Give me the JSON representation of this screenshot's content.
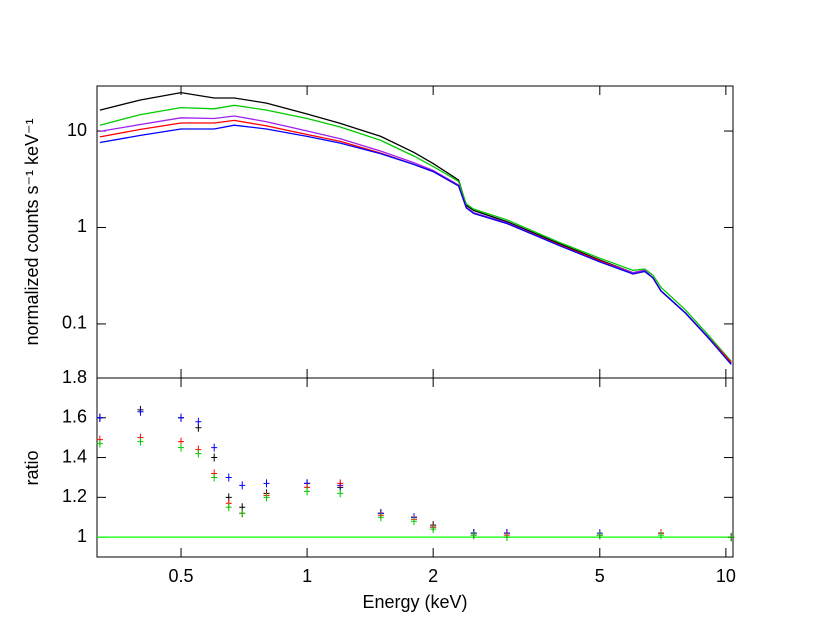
{
  "chart_data": [
    {
      "type": "line",
      "x_scale": "log",
      "y_scale": "log",
      "ylabel": "normalized counts s⁻¹ keV⁻¹",
      "x": [
        0.32,
        0.4,
        0.5,
        0.6,
        0.67,
        0.8,
        1,
        1.2,
        1.5,
        1.8,
        2,
        2.3,
        2.4,
        2.5,
        3,
        4,
        5,
        6,
        6.4,
        6.7,
        7,
        8,
        9,
        10.3
      ],
      "xlim": [
        0.315,
        10.4
      ],
      "ylim": [
        0.0275,
        29.3
      ],
      "yticks": [
        0.1,
        1,
        10
      ],
      "series": [
        {
          "name": "black",
          "color": "#000000",
          "values": [
            16.5,
            21,
            25,
            22,
            22,
            19.5,
            15,
            12,
            8.8,
            6,
            4.6,
            3.1,
            1.7,
            1.5,
            1.15,
            0.68,
            0.46,
            0.34,
            0.36,
            0.3,
            0.22,
            0.13,
            0.075,
            0.039
          ]
        },
        {
          "name": "green",
          "color": "#00cc00",
          "values": [
            11.5,
            14.8,
            17.5,
            17,
            18.5,
            16.5,
            13.5,
            11,
            8,
            5.5,
            4.3,
            3,
            1.75,
            1.55,
            1.2,
            0.7,
            0.48,
            0.36,
            0.37,
            0.32,
            0.24,
            0.14,
            0.08,
            0.041
          ]
        },
        {
          "name": "purple",
          "color": "#a020f0",
          "values": [
            9.9,
            11.7,
            13.7,
            13.5,
            14.3,
            12.5,
            10,
            8.3,
            6.2,
            4.7,
            3.9,
            2.75,
            1.62,
            1.42,
            1.12,
            0.66,
            0.45,
            0.34,
            0.36,
            0.3,
            0.22,
            0.13,
            0.076,
            0.04
          ]
        },
        {
          "name": "red",
          "color": "#ff0000",
          "values": [
            8.7,
            10.4,
            12.1,
            12.1,
            12.9,
            11.3,
            9.2,
            7.8,
            5.9,
            4.5,
            3.8,
            2.7,
            1.6,
            1.4,
            1.1,
            0.66,
            0.45,
            0.33,
            0.35,
            0.3,
            0.22,
            0.13,
            0.075,
            0.04
          ]
        },
        {
          "name": "blue",
          "color": "#0000ff",
          "values": [
            7.6,
            9,
            10.5,
            10.5,
            11.5,
            10.5,
            8.8,
            7.5,
            5.8,
            4.5,
            3.8,
            2.7,
            1.6,
            1.4,
            1.1,
            0.65,
            0.44,
            0.33,
            0.35,
            0.3,
            0.22,
            0.13,
            0.075,
            0.038
          ]
        }
      ]
    },
    {
      "type": "scatter",
      "x_scale": "log",
      "xlabel": "Energy (keV)",
      "ylabel": "ratio",
      "x": [
        0.32,
        0.4,
        0.5,
        0.55,
        0.6,
        0.65,
        0.7,
        0.8,
        1,
        1.2,
        1.5,
        1.8,
        2,
        2.5,
        3,
        5,
        7,
        10.3
      ],
      "xlim": [
        0.315,
        10.4
      ],
      "ylim": [
        0.9,
        1.8
      ],
      "xticks": [
        0.5,
        1,
        2,
        5,
        10
      ],
      "yticks": [
        1,
        1.2,
        1.4,
        1.6,
        1.8
      ],
      "reference_line": {
        "value": 1,
        "color": "#00ff00"
      },
      "series": [
        {
          "name": "black",
          "color": "#000000",
          "values": [
            1.6,
            1.64,
            1.6,
            1.55,
            1.4,
            1.2,
            1.15,
            1.22,
            1.27,
            1.25,
            1.12,
            1.1,
            1.06,
            1.02,
            1.02,
            1.01,
            1.02,
            1.0
          ]
        },
        {
          "name": "blue",
          "color": "#0000ff",
          "values": [
            1.6,
            1.63,
            1.6,
            1.58,
            1.45,
            1.3,
            1.26,
            1.27,
            1.27,
            1.26,
            1.12,
            1.1,
            1.05,
            1.02,
            1.02,
            1.02,
            1.02,
            1.0
          ]
        },
        {
          "name": "red",
          "color": "#ff0000",
          "values": [
            1.49,
            1.5,
            1.48,
            1.44,
            1.32,
            1.17,
            1.12,
            1.21,
            1.25,
            1.27,
            1.11,
            1.09,
            1.05,
            1.01,
            1.01,
            1.01,
            1.02,
            1.0
          ]
        },
        {
          "name": "green",
          "color": "#00cc00",
          "values": [
            1.47,
            1.48,
            1.45,
            1.42,
            1.3,
            1.15,
            1.12,
            1.2,
            1.23,
            1.22,
            1.1,
            1.08,
            1.04,
            1.01,
            1.0,
            1.01,
            1.01,
            1.0
          ]
        }
      ]
    }
  ]
}
